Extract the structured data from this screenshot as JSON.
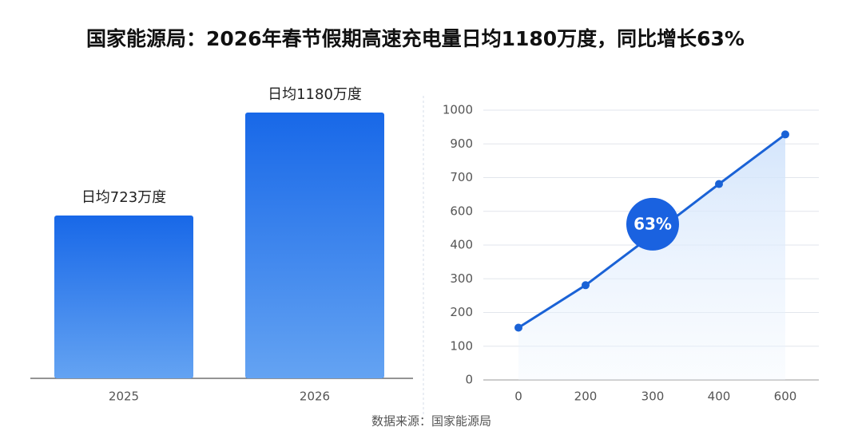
{
  "title": "国家能源局：2026年春节假期高速充电量日均1180万度，同比增长63%",
  "source": "数据来源：国家能源局",
  "chart_data": [
    {
      "type": "bar",
      "categories": [
        "2025",
        "2026"
      ],
      "values": [
        723,
        1180
      ],
      "value_labels": [
        "日均723万度",
        "日均1180万度"
      ],
      "color": "#1b6fe6"
    },
    {
      "type": "line",
      "categories": [
        "0",
        "200",
        "300",
        "400",
        "600"
      ],
      "values": [
        155,
        281,
        462,
        681,
        928
      ],
      "color": "#1a62d6",
      "ylim": [
        0,
        1000
      ],
      "yticks": [
        0,
        100,
        200,
        300,
        400,
        600,
        700,
        900,
        1000
      ],
      "grid": true,
      "annotations": [
        {
          "text": "63%",
          "index": 2
        }
      ]
    }
  ]
}
